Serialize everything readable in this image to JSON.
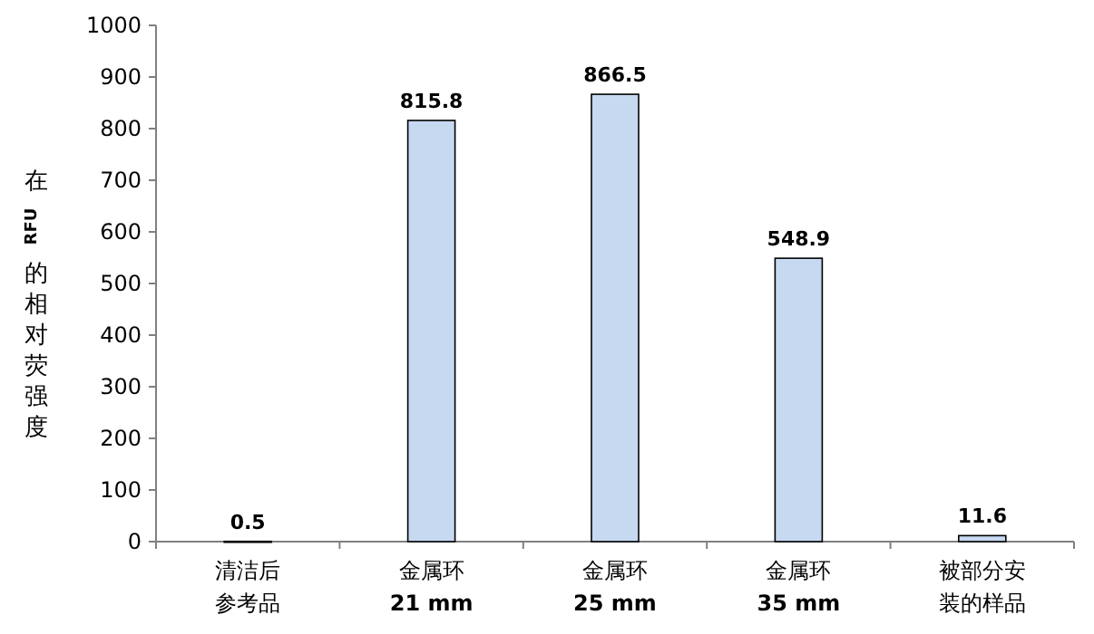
{
  "chart_data": {
    "type": "bar",
    "ylabel": "在 RFU 的相对荧强度",
    "categories": [
      "清洁后参考品",
      "金属环 **21 mm**",
      "金属环 **25 mm**",
      "金属环 **35 mm**",
      "被部分安装的样品"
    ],
    "values": [
      0.5,
      815.8,
      866.5,
      548.9,
      11.6
    ],
    "color": "#c6d9f1",
    "ylim": [
      0,
      1000
    ],
    "yticks": [
      0,
      100,
      200,
      300,
      400,
      500,
      600,
      700,
      800,
      900,
      1000
    ],
    "data_labels": true
  }
}
